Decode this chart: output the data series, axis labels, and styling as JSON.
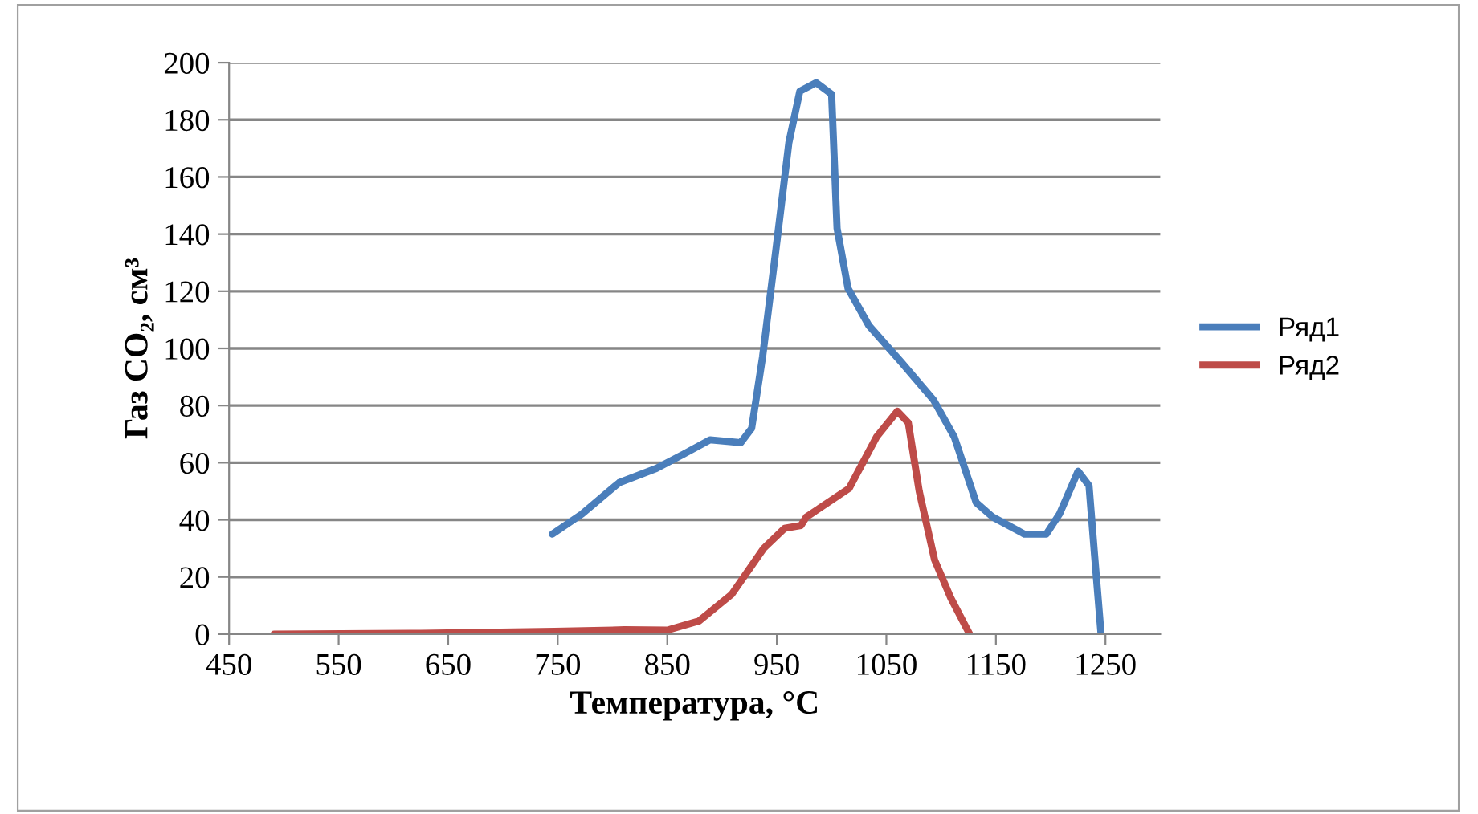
{
  "chart_data": {
    "type": "line",
    "xlabel": "Температура, °C",
    "ylabel": "Газ CO₂, см³",
    "xlim": [
      450,
      1300
    ],
    "xticks": [
      450,
      550,
      650,
      750,
      850,
      950,
      1050,
      1150,
      1250
    ],
    "ylim": [
      0,
      200
    ],
    "yticks": [
      0,
      20,
      40,
      60,
      80,
      100,
      120,
      140,
      160,
      180,
      200
    ],
    "grid": "y",
    "legend": "right",
    "marker": "none",
    "line_style": "solid",
    "series": [
      {
        "name": "Ряд1",
        "color": "#4a7ebb",
        "x": [
          745,
          772,
          806,
          840,
          865,
          889,
          917,
          927,
          937,
          949,
          961,
          971,
          986,
          1000,
          1005,
          1015,
          1034,
          1064,
          1093,
          1112,
          1132,
          1147,
          1176,
          1196,
          1208,
          1225,
          1235,
          1240,
          1246
        ],
        "values": [
          35,
          42,
          53,
          58,
          63,
          68,
          67,
          72,
          97,
          134,
          172,
          190,
          193,
          189,
          142,
          121,
          108,
          95,
          82,
          69,
          46,
          41,
          35,
          35,
          42,
          57,
          52,
          28,
          0
        ]
      },
      {
        "name": "Ряд2",
        "color": "#be4b48",
        "x": [
          491,
          625,
          747,
          811,
          850,
          879,
          909,
          938,
          957,
          972,
          977,
          1016,
          1041,
          1060,
          1070,
          1080,
          1094,
          1109,
          1126
        ],
        "values": [
          0,
          0.3,
          1,
          1.5,
          1.4,
          4.6,
          14,
          30,
          37,
          38,
          41,
          51,
          69,
          78,
          74,
          50,
          26,
          12.5,
          0
        ]
      }
    ]
  }
}
